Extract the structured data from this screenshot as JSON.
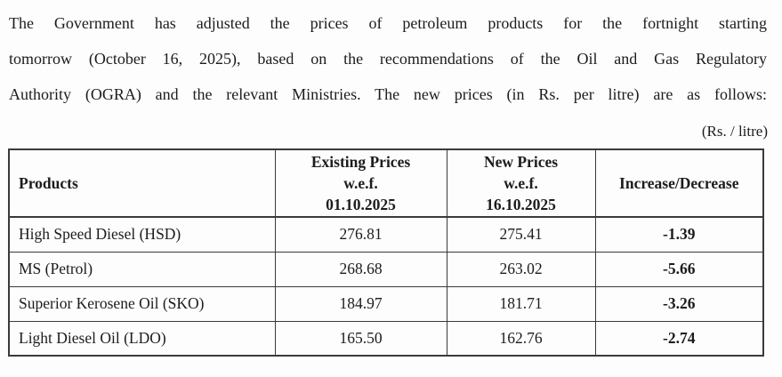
{
  "document": {
    "paragraph_lines": [
      "The Government has adjusted the prices of petroleum products for the fortnight starting",
      "tomorrow (October 16, 2025), based on the recommendations of the Oil and Gas Regulatory",
      "Authority (OGRA) and the relevant Ministries. The new prices (in Rs. per litre) are as follows:"
    ],
    "unit_label": "(Rs. / litre)"
  },
  "table": {
    "headers": {
      "products": "Products",
      "existing": "Existing Prices\nw.e.f.\n01.10.2025",
      "new": "New Prices\nw.e.f.\n16.10.2025",
      "change": "Increase/Decrease"
    },
    "rows": [
      {
        "product": "High Speed Diesel (HSD)",
        "existing": "276.81",
        "new": "275.41",
        "change": "-1.39"
      },
      {
        "product": "MS (Petrol)",
        "existing": "268.68",
        "new": "263.02",
        "change": "-5.66"
      },
      {
        "product": "Superior Kerosene Oil (SKO)",
        "existing": "184.97",
        "new": "181.71",
        "change": "-3.26"
      },
      {
        "product": "Light Diesel Oil (LDO)",
        "existing": "165.50",
        "new": "162.76",
        "change": "-2.74"
      }
    ]
  },
  "colors": {
    "text": "#1c1c1c",
    "border": "#3a3a3a",
    "background": "#fdfdfd"
  }
}
